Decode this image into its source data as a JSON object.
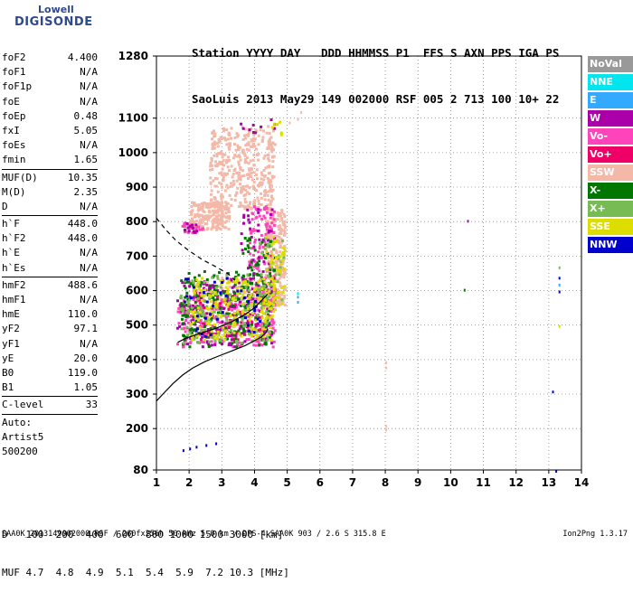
{
  "logo": {
    "line1": "Lowell",
    "line2": "DIGISONDE"
  },
  "header": {
    "line1": "Station YYYY DAY   DDD HHMMSS P1  FFS S AXN PPS IGA PS",
    "line2": "SaoLuis 2013 May29 149 002000 RSF 005 2 713 100 10+ 22"
  },
  "params": {
    "group1": [
      {
        "name": "foF2",
        "value": "4.400"
      },
      {
        "name": "foF1",
        "value": "N/A"
      },
      {
        "name": "foF1p",
        "value": "N/A"
      },
      {
        "name": "foE",
        "value": "N/A"
      },
      {
        "name": "foEp",
        "value": "0.48"
      },
      {
        "name": "fxI",
        "value": "5.05"
      },
      {
        "name": "foEs",
        "value": "N/A"
      },
      {
        "name": "fmin",
        "value": "1.65"
      }
    ],
    "group2": [
      {
        "name": "MUF(D)",
        "value": "10.35"
      },
      {
        "name": "M(D)",
        "value": "2.35"
      },
      {
        "name": "D",
        "value": "N/A"
      }
    ],
    "group3": [
      {
        "name": "h`F",
        "value": "448.0"
      },
      {
        "name": "h`F2",
        "value": "448.0"
      },
      {
        "name": "h`E",
        "value": "N/A"
      },
      {
        "name": "h`Es",
        "value": "N/A"
      }
    ],
    "group4": [
      {
        "name": "hmF2",
        "value": "488.6"
      },
      {
        "name": "hmF1",
        "value": "N/A"
      },
      {
        "name": "hmE",
        "value": "110.0"
      },
      {
        "name": "yF2",
        "value": "97.1"
      },
      {
        "name": "yF1",
        "value": "N/A"
      },
      {
        "name": "yE",
        "value": "20.0"
      },
      {
        "name": "B0",
        "value": "119.0"
      },
      {
        "name": "B1",
        "value": "1.05"
      }
    ],
    "clevel": {
      "name": "C-level",
      "value": "33"
    },
    "auto": [
      "Auto:",
      "Artist5",
      "500200"
    ]
  },
  "legend": [
    {
      "label": "NoVal",
      "color": "#999999"
    },
    {
      "label": "NNE",
      "color": "#00e5ee"
    },
    {
      "label": "E",
      "color": "#33aaff"
    },
    {
      "label": "W",
      "color": "#aa00aa"
    },
    {
      "label": "Vo-",
      "color": "#ff44bb"
    },
    {
      "label": "Vo+",
      "color": "#ee0066"
    },
    {
      "label": "SSW",
      "color": "#f4b8a8"
    },
    {
      "label": "X-",
      "color": "#007700"
    },
    {
      "label": "X+",
      "color": "#77bb55"
    },
    {
      "label": "SSE",
      "color": "#dddd00"
    },
    {
      "label": "NNW",
      "color": "#0000cc"
    }
  ],
  "footer": {
    "row1_label": "D",
    "row1_values": "100  200  400  600  800 1000 1500 3000 [km]",
    "row2_label": "MUF",
    "row2_values": "4.7  4.8  4.9  5.1  5.4  5.9  7.2 10.3 [MHz]",
    "bottom": "SAA0K_2013149002000.RSF / 260fx256h 50 kHz 5.0 km / DPS-4 SAA0K 903 / 2.6 S 315.8 E",
    "version": "Ion2Png 1.3.17"
  },
  "chart_data": {
    "type": "scatter",
    "xlabel": "",
    "ylabel": "",
    "xlim": [
      1,
      14
    ],
    "ylim": [
      80,
      1280
    ],
    "x_ticks": [
      1,
      2,
      3,
      4,
      5,
      6,
      7,
      8,
      9,
      10,
      11,
      12,
      13,
      14
    ],
    "y_ticks": [
      80,
      200,
      300,
      400,
      500,
      600,
      700,
      800,
      900,
      1000,
      1100,
      1280
    ],
    "grid": "dotted",
    "legend_position": "right",
    "series": [
      {
        "name": "SSW",
        "color": "#f4b8a8",
        "regions": [
          {
            "x": [
              2.0,
              3.2
            ],
            "y": [
              780,
              860
            ],
            "n": 220
          },
          {
            "x": [
              2.6,
              4.6
            ],
            "y": [
              840,
              1080
            ],
            "n": 420
          },
          {
            "x": [
              4.3,
              4.9
            ],
            "y": [
              560,
              840
            ],
            "n": 260
          },
          {
            "x": [
              1.9,
              4.3
            ],
            "y": [
              470,
              640
            ],
            "n": 160
          }
        ],
        "points": [
          [
            5.3,
            1100
          ],
          [
            5.4,
            1120
          ],
          [
            5.05,
            1090
          ],
          [
            8.0,
            380
          ],
          [
            8.0,
            395
          ],
          [
            8.0,
            200
          ],
          [
            8.0,
            210
          ]
        ]
      },
      {
        "name": "Vo-",
        "color": "#ff44bb",
        "regions": [
          {
            "x": [
              1.6,
              4.6
            ],
            "y": [
              440,
              580
            ],
            "n": 260
          },
          {
            "x": [
              3.8,
              4.6
            ],
            "y": [
              560,
              850
            ],
            "n": 130
          },
          {
            "x": [
              1.7,
              2.4
            ],
            "y": [
              770,
              800
            ],
            "n": 25
          }
        ]
      },
      {
        "name": "Vo+",
        "color": "#ee0066",
        "regions": [
          {
            "x": [
              2.2,
              4.3
            ],
            "y": [
              460,
              600
            ],
            "n": 80
          }
        ]
      },
      {
        "name": "W",
        "color": "#aa00aa",
        "regions": [
          {
            "x": [
              1.6,
              4.5
            ],
            "y": [
              440,
              640
            ],
            "n": 180
          },
          {
            "x": [
              3.5,
              4.6
            ],
            "y": [
              600,
              840
            ],
            "n": 50
          },
          {
            "x": [
              1.8,
              2.2
            ],
            "y": [
              770,
              800
            ],
            "n": 12
          },
          {
            "x": [
              3.2,
              4.6
            ],
            "y": [
              1060,
              1110
            ],
            "n": 10
          }
        ],
        "points": [
          [
            10.5,
            805
          ]
        ]
      },
      {
        "name": "X-",
        "color": "#007700",
        "regions": [
          {
            "x": [
              1.7,
              4.5
            ],
            "y": [
              440,
              660
            ],
            "n": 200
          },
          {
            "x": [
              3.6,
              4.6
            ],
            "y": [
              620,
              760
            ],
            "n": 40
          }
        ],
        "points": [
          [
            10.4,
            605
          ]
        ]
      },
      {
        "name": "X+",
        "color": "#77bb55",
        "regions": [
          {
            "x": [
              1.7,
              4.5
            ],
            "y": [
              450,
              650
            ],
            "n": 150
          },
          {
            "x": [
              4.1,
              4.9
            ],
            "y": [
              560,
              760
            ],
            "n": 40
          }
        ],
        "points": [
          [
            13.3,
            670
          ]
        ]
      },
      {
        "name": "SSE",
        "color": "#dddd00",
        "regions": [
          {
            "x": [
              2.0,
              4.6
            ],
            "y": [
              460,
              640
            ],
            "n": 200
          },
          {
            "x": [
              4.3,
              4.9
            ],
            "y": [
              560,
              760
            ],
            "n": 60
          },
          {
            "x": [
              4.5,
              4.8
            ],
            "y": [
              1050,
              1100
            ],
            "n": 6
          }
        ],
        "points": [
          [
            13.3,
            500
          ]
        ]
      },
      {
        "name": "NNW",
        "color": "#0000cc",
        "regions": [
          {
            "x": [
              1.8,
              4.3
            ],
            "y": [
              470,
              640
            ],
            "n": 40
          }
        ],
        "points": [
          [
            1.8,
            140
          ],
          [
            2.0,
            145
          ],
          [
            2.2,
            150
          ],
          [
            2.5,
            155
          ],
          [
            2.8,
            160
          ],
          [
            13.3,
            600
          ],
          [
            13.3,
            640
          ],
          [
            13.1,
            310
          ],
          [
            13.2,
            80
          ]
        ]
      },
      {
        "name": "E",
        "color": "#33aaff",
        "regions": [],
        "points": [
          [
            5.3,
            570
          ],
          [
            5.3,
            585
          ],
          [
            13.3,
            620
          ]
        ]
      },
      {
        "name": "NNE",
        "color": "#00e5ee",
        "regions": [],
        "points": [
          [
            5.3,
            595
          ]
        ]
      }
    ],
    "profile_line": {
      "x": [
        1.0,
        1.2,
        1.5,
        1.8,
        2.1,
        2.5,
        2.9,
        3.3,
        3.7,
        4.0,
        4.2,
        4.35,
        4.4,
        4.4
      ],
      "y": [
        280,
        300,
        330,
        355,
        375,
        395,
        410,
        425,
        440,
        455,
        465,
        478,
        488,
        490
      ]
    },
    "trace_line": {
      "x": [
        1.65,
        1.9,
        2.3,
        2.8,
        3.3,
        3.7,
        4.0,
        4.2,
        4.35,
        4.4
      ],
      "y": [
        450,
        462,
        475,
        490,
        510,
        530,
        550,
        570,
        585,
        590
      ]
    },
    "dashed_line": {
      "x": [
        1.0,
        1.3,
        1.6,
        2.0,
        2.4,
        2.8,
        3.2,
        3.4
      ],
      "y": [
        810,
        775,
        745,
        715,
        690,
        670,
        648,
        630
      ]
    }
  }
}
